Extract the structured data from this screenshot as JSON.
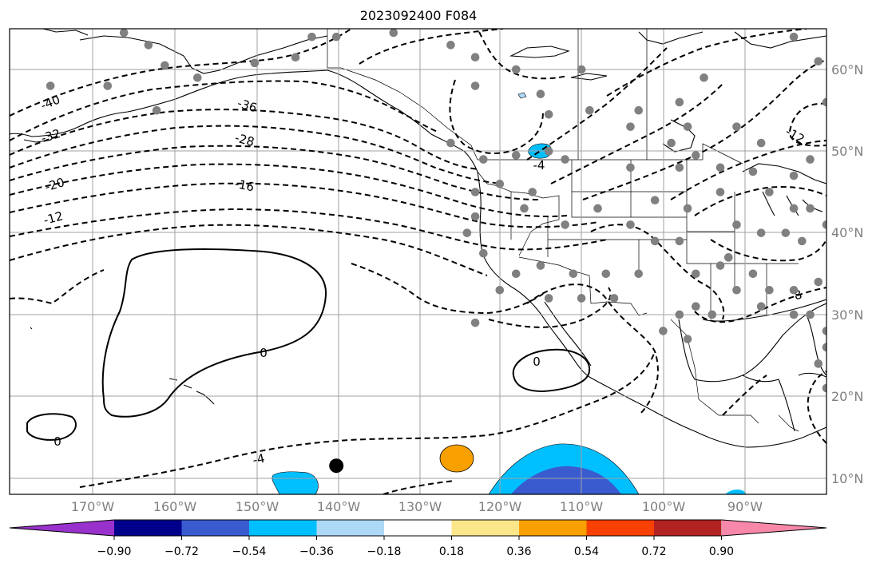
{
  "title": "2023092400 F084",
  "map": {
    "lon_range": [
      -180,
      -80
    ],
    "lat_range": [
      8,
      65
    ],
    "meridians": [
      -170,
      -160,
      -150,
      -140,
      -130,
      -120,
      -110,
      -100,
      -90
    ],
    "parallels": [
      10,
      20,
      30,
      40,
      50,
      60
    ],
    "lon_labels": [
      "170°W",
      "160°W",
      "150°W",
      "140°W",
      "130°W",
      "120°W",
      "110°W",
      "100°W",
      "90°W"
    ],
    "lat_labels": [
      "10°N",
      "20°N",
      "30°N",
      "40°N",
      "50°N",
      "60°N"
    ],
    "contour_labels": [
      "-40",
      "-36",
      "-32",
      "-28",
      "-20",
      "-16",
      "-12",
      "-4",
      "0",
      "0",
      "0",
      "-4",
      "-8",
      "-12"
    ],
    "station_color": "#808080",
    "highlight_point": {
      "lon": -140,
      "lat": 11.5,
      "color": "#000000"
    },
    "shaded_anomalies": [
      {
        "name": "positive-anomaly",
        "lon": -124.5,
        "lat": 12.3,
        "class": "0.36-0.54"
      },
      {
        "name": "negative-anomaly-south",
        "lon": -112,
        "lat": 9,
        "class": "-0.72--0.36"
      },
      {
        "name": "negative-anomaly-west",
        "lon": -143,
        "lat": 9,
        "class": "-0.54--0.36"
      },
      {
        "name": "negative-anomaly-north",
        "lon": -115,
        "lat": 50,
        "class": "-0.54--0.36"
      }
    ]
  },
  "colorbar": {
    "colors": [
      "#9932cc",
      "#00008b",
      "#3a5bd0",
      "#00bfff",
      "#add8f6",
      "#ffffff",
      "#fbe68a",
      "#f8a000",
      "#f84000",
      "#b22222",
      "#f888aa"
    ],
    "tick_labels": [
      "−0.90",
      "−0.72",
      "−0.54",
      "−0.36",
      "−0.18",
      "0.18",
      "0.36",
      "0.54",
      "0.72",
      "0.90"
    ]
  }
}
